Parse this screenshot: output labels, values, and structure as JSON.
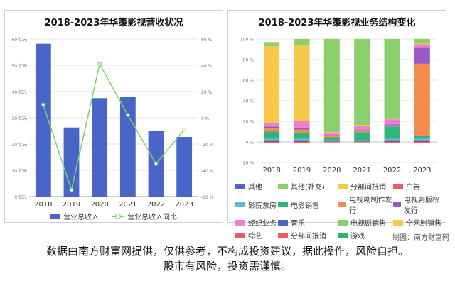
{
  "left_chart": {
    "title": "2018-2023年华策影视营收状况",
    "legend": {
      "revenue": "营业总收入",
      "growth": "营业总收入同比"
    }
  },
  "right_chart": {
    "title": "2018-2023年华策影视业务结构变化",
    "legend": [
      "其他",
      "其他(补充)",
      "分部间抵销",
      "广告",
      "影院票房",
      "电影销售",
      "电视剧制作发行",
      "电视剧版权发行",
      "经纪业务",
      "音乐",
      "电视剧销售",
      "全网剧销售",
      "综艺",
      "分部间抵消",
      "游戏"
    ]
  },
  "footer": {
    "credit": "制图：南方财富网",
    "line1": "数据由南方财富网提供，仅供参考，不构成投资建议，据此操作，风险自担。",
    "line2": "股市有风险，投资需谨慎。"
  },
  "chart_data": [
    {
      "type": "bar",
      "title": "2018-2023年华策影视营收状况",
      "categories": [
        "2018",
        "2019",
        "2020",
        "2021",
        "2022",
        "2023"
      ],
      "y_ticks": [
        "0 亿元",
        "10 亿元",
        "20 亿元",
        "30 亿元",
        "40 亿元",
        "50 亿元",
        "60 亿元"
      ],
      "y2_ticks": [
        "-60 %",
        "-40 %",
        "-20 %",
        "0 %",
        "20 %",
        "40 %",
        "60 %"
      ],
      "ylim": [
        0,
        60
      ],
      "y2lim": [
        -60,
        60
      ],
      "series": [
        {
          "name": "营业总收入",
          "kind": "bar",
          "axis": "left",
          "color": "#4a65c8",
          "values": [
            58.2,
            26.3,
            37.5,
            38.1,
            24.9,
            22.7
          ]
        },
        {
          "name": "营业总收入同比",
          "kind": "line",
          "axis": "right",
          "color": "#7ed36b",
          "values": [
            10.0,
            -55.0,
            41.0,
            2.0,
            -35.0,
            -9.0
          ]
        }
      ]
    },
    {
      "type": "bar",
      "stacked": true,
      "title": "2018-2023年华策影视业务结构变化",
      "categories": [
        "2018",
        "2019",
        "2020",
        "2021",
        "2022",
        "2023"
      ],
      "y_ticks": [
        "-20 %",
        "0 %",
        "20 %",
        "40 %",
        "60 %",
        "80 %",
        "100 %"
      ],
      "ylim": [
        -20,
        100
      ],
      "series": [
        {
          "name": "分部间抵消",
          "color": "#e85d6a",
          "values": [
            -1,
            -1,
            -0.5,
            -0.5,
            -1,
            -1
          ]
        },
        {
          "name": "其他",
          "color": "#4a65c8",
          "values": [
            1,
            1,
            0.5,
            0.5,
            1,
            1
          ]
        },
        {
          "name": "广告",
          "color": "#e85d6a",
          "values": [
            1,
            1,
            0.5,
            0.5,
            1,
            1
          ]
        },
        {
          "name": "影院票房",
          "color": "#56bce0",
          "values": [
            1,
            1,
            0.5,
            0.5,
            1,
            1
          ]
        },
        {
          "name": "电影销售",
          "color": "#2fb57a",
          "values": [
            7,
            6,
            3,
            8,
            12,
            3
          ]
        },
        {
          "name": "电视剧制作发行",
          "color": "#f28b4d",
          "values": [
            3,
            3,
            1,
            1,
            1,
            70
          ]
        },
        {
          "name": "电视剧版权发行",
          "color": "#9a59c2",
          "values": [
            2,
            2,
            1,
            1,
            1,
            16
          ]
        },
        {
          "name": "经纪业务",
          "color": "#ef7fce",
          "values": [
            3,
            6,
            2,
            4,
            5,
            3
          ]
        },
        {
          "name": "全网剧销售",
          "color": "#f7c948",
          "values": [
            75,
            74,
            1,
            1,
            1,
            1
          ]
        },
        {
          "name": "电视剧销售",
          "color": "#8acf6b",
          "values": [
            4,
            6,
            90.5,
            83.5,
            77,
            4
          ]
        }
      ]
    }
  ]
}
